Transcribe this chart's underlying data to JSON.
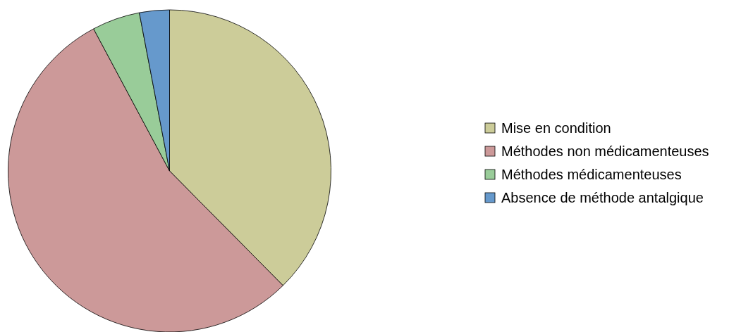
{
  "chart_data": {
    "type": "pie",
    "categories": [
      "Mise en condition",
      "Méthodes non médicamenteuses",
      "Méthodes médicamenteuses",
      "Absence de méthode antalgique"
    ],
    "values": [
      37.6,
      54.6,
      4.8,
      3.0
    ],
    "colors": [
      "#cccc99",
      "#cc9999",
      "#99cc99",
      "#6699cc"
    ],
    "legend": "right"
  }
}
